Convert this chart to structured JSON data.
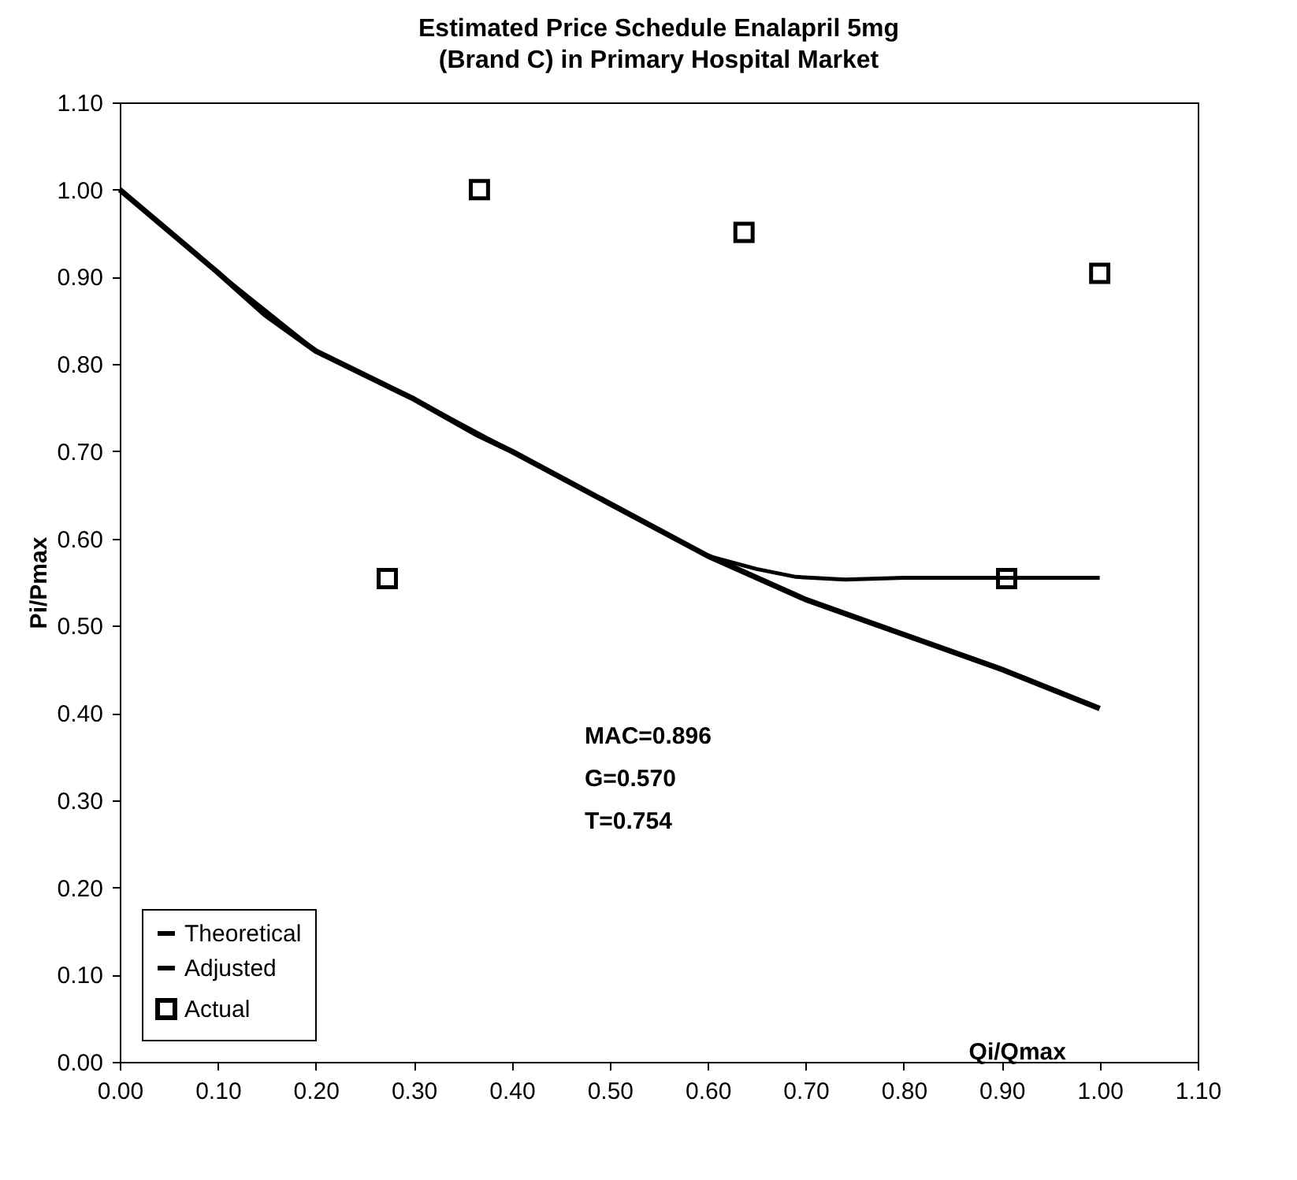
{
  "chart_data": {
    "type": "line",
    "title": "Estimated Price Schedule Enalapril 5mg",
    "subtitle": "(Brand C)  in Primary Hospital Market",
    "xlabel": "Qi/Qmax",
    "ylabel": "Pi/Pmax",
    "xlim": [
      0,
      1.1
    ],
    "ylim": [
      0,
      1.1
    ],
    "xticks": [
      {
        "value": 0,
        "label": "0.00"
      },
      {
        "value": 0.1,
        "label": "0.10"
      },
      {
        "value": 0.2,
        "label": "0.20"
      },
      {
        "value": 0.3,
        "label": "0.30"
      },
      {
        "value": 0.4,
        "label": "0.40"
      },
      {
        "value": 0.5,
        "label": "0.50"
      },
      {
        "value": 0.6,
        "label": "0.60"
      },
      {
        "value": 0.7,
        "label": "0.70"
      },
      {
        "value": 0.8,
        "label": "0.80"
      },
      {
        "value": 0.9,
        "label": "0.90"
      },
      {
        "value": 1,
        "label": "1.00"
      },
      {
        "value": 1.1,
        "label": "1.10"
      }
    ],
    "yticks": [
      {
        "value": 0,
        "label": "0.00"
      },
      {
        "value": 0.1,
        "label": "0.10"
      },
      {
        "value": 0.2,
        "label": "0.20"
      },
      {
        "value": 0.3,
        "label": "0.30"
      },
      {
        "value": 0.4,
        "label": "0.40"
      },
      {
        "value": 0.5,
        "label": "0.50"
      },
      {
        "value": 0.6,
        "label": "0.60"
      },
      {
        "value": 0.7,
        "label": "0.70"
      },
      {
        "value": 0.8,
        "label": "0.80"
      },
      {
        "value": 0.9,
        "label": "0.90"
      },
      {
        "value": 1,
        "label": "1.00"
      },
      {
        "value": 1.1,
        "label": "1.10"
      }
    ],
    "grid": false,
    "legend": "bottom left",
    "annotations": [
      "MAC=0.896",
      "G=0.570",
      "T=0.754"
    ],
    "series": [
      {
        "name": "Theoretical",
        "type": "line",
        "color": "#000000",
        "marker": "none",
        "x": [
          0,
          0.1,
          0.148,
          0.2,
          0.3,
          0.363,
          0.4,
          0.5,
          0.6,
          0.7,
          0.8,
          0.9,
          1.0
        ],
        "values": [
          1.0,
          0.905,
          0.857,
          0.815,
          0.76,
          0.72,
          0.7,
          0.64,
          0.58,
          0.53,
          0.49,
          0.45,
          0.405
        ]
      },
      {
        "name": "Adjusted",
        "type": "line",
        "color": "#000000",
        "marker": "none",
        "x": [
          0,
          0.1,
          0.2,
          0.3,
          0.4,
          0.5,
          0.6,
          0.65,
          0.69,
          0.74,
          0.8,
          0.9,
          1.0
        ],
        "values": [
          1.0,
          0.905,
          0.815,
          0.76,
          0.7,
          0.64,
          0.58,
          0.565,
          0.556,
          0.553,
          0.555,
          0.555,
          0.555
        ]
      },
      {
        "name": "Actual",
        "type": "scatter",
        "color": "#000000",
        "marker": "square",
        "x": [
          0.273,
          0.367,
          0.637,
          0.905,
          1.0
        ],
        "values": [
          0.554,
          1.0,
          0.951,
          0.554,
          0.904
        ]
      }
    ]
  }
}
